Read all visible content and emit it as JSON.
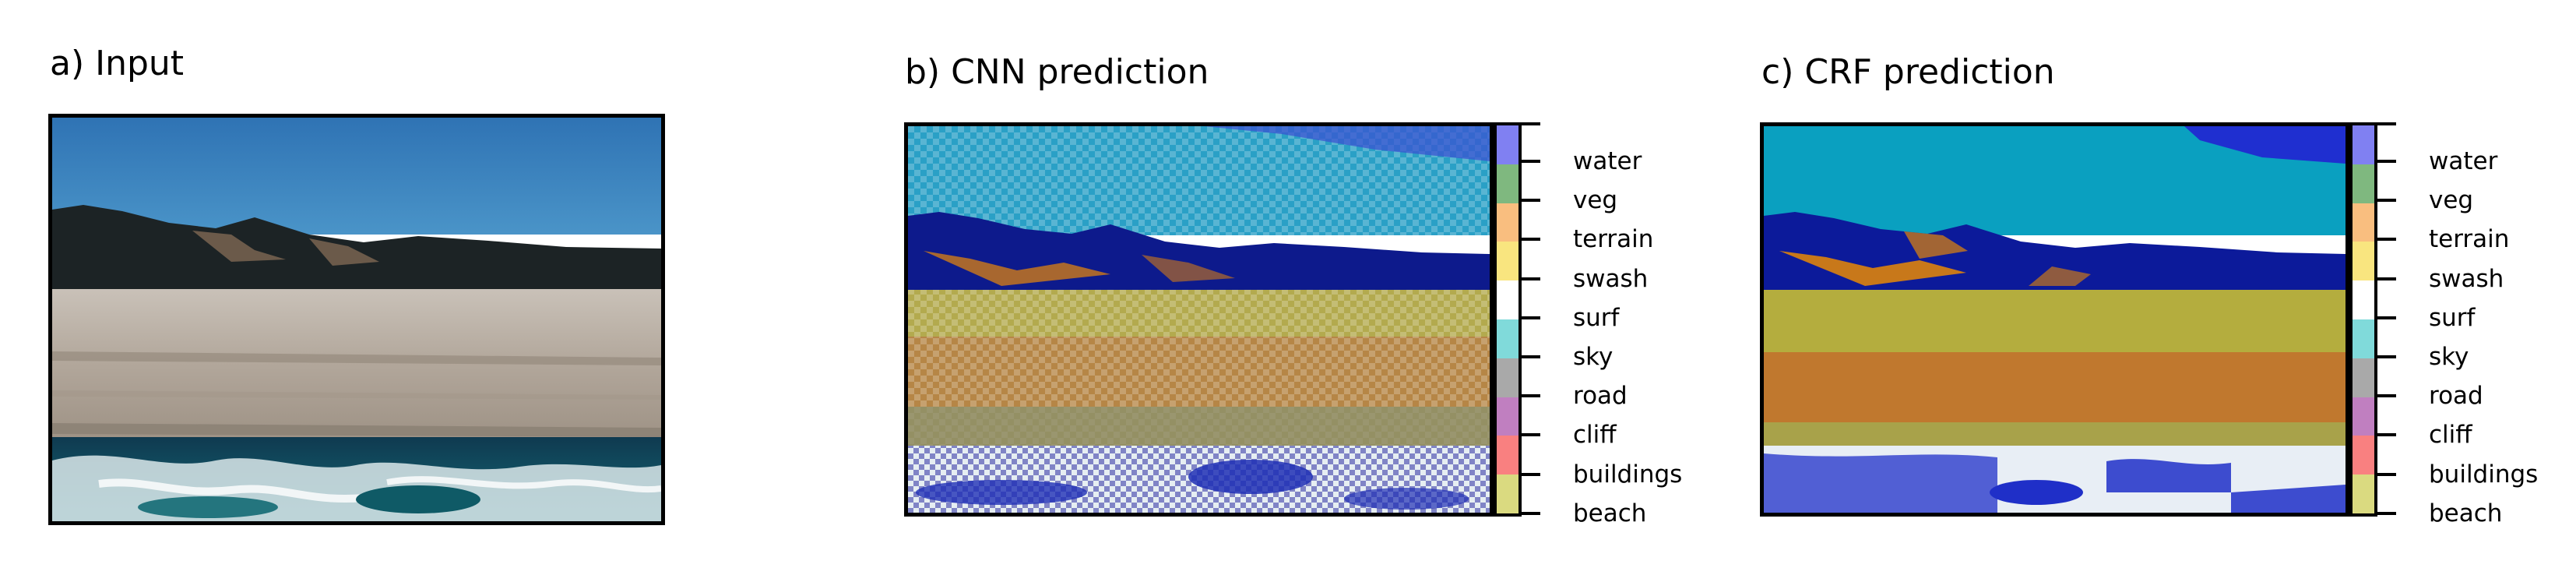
{
  "panels": {
    "input": {
      "title": "a) Input"
    },
    "cnn": {
      "title": "b) CNN prediction"
    },
    "crf": {
      "title": "c) CRF prediction"
    }
  },
  "colorbar": {
    "classes": [
      {
        "label": "water",
        "color": "#8080f2"
      },
      {
        "label": "veg",
        "color": "#7fb87f"
      },
      {
        "label": "terrain",
        "color": "#f9be7f"
      },
      {
        "label": "swash",
        "color": "#f9e57f"
      },
      {
        "label": "surf",
        "color": "#ffffff"
      },
      {
        "label": "sky",
        "color": "#80dada"
      },
      {
        "label": "road",
        "color": "#a9a9a9"
      },
      {
        "label": "cliff",
        "color": "#c07fc0"
      },
      {
        "label": "buildings",
        "color": "#f98080"
      },
      {
        "label": "beach",
        "color": "#dada80"
      }
    ]
  }
}
